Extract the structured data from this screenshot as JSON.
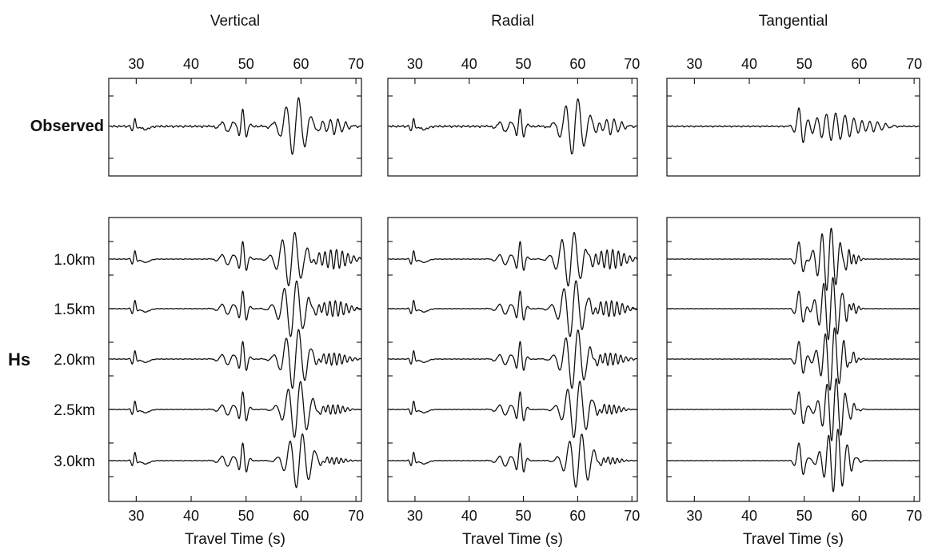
{
  "chart_data": {
    "type": "line",
    "xlabel": "Travel Time (s)",
    "xlim": [
      25,
      71
    ],
    "xticks": [
      30,
      40,
      50,
      60,
      70
    ],
    "components": [
      "Vertical",
      "Radial",
      "Tangential"
    ],
    "observed_label": "Observed",
    "model_parameter_label": "Hs",
    "model_values": [
      "1.0km",
      "1.5km",
      "2.0km",
      "2.5km",
      "3.0km"
    ],
    "arrivals": {
      "Vertical": {
        "P": 29.5,
        "S": 49.0,
        "surface_wave_center": 59.0
      },
      "Radial": {
        "P": 29.5,
        "S": 49.0,
        "surface_wave_center": 59.5
      },
      "Tangential": {
        "S": 48.5,
        "surface_wave_center": 54.5
      }
    },
    "grid": false,
    "legend": "none"
  }
}
